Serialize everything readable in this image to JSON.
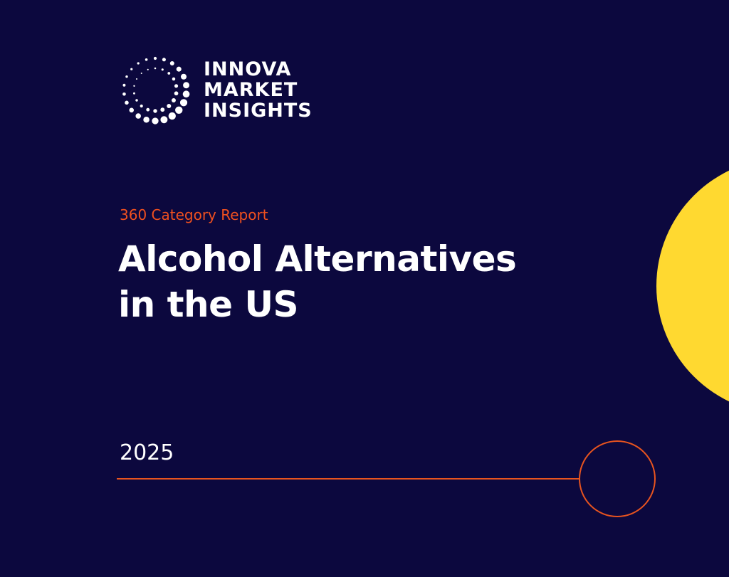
{
  "brand": {
    "name_lines": [
      "INNOVA",
      "MARKET",
      "INSIGHTS"
    ],
    "logo_icon": "dotted-circle-logo-icon"
  },
  "report": {
    "subtitle": "360 Category Report",
    "title_line1": "Alcohol Alternatives",
    "title_line2": "in the US",
    "year": "2025"
  },
  "colors": {
    "background": "#0c083e",
    "accent_orange": "#e8541f",
    "subtitle_orange": "#f0501f",
    "accent_yellow": "#ffd930",
    "text": "#ffffff"
  }
}
